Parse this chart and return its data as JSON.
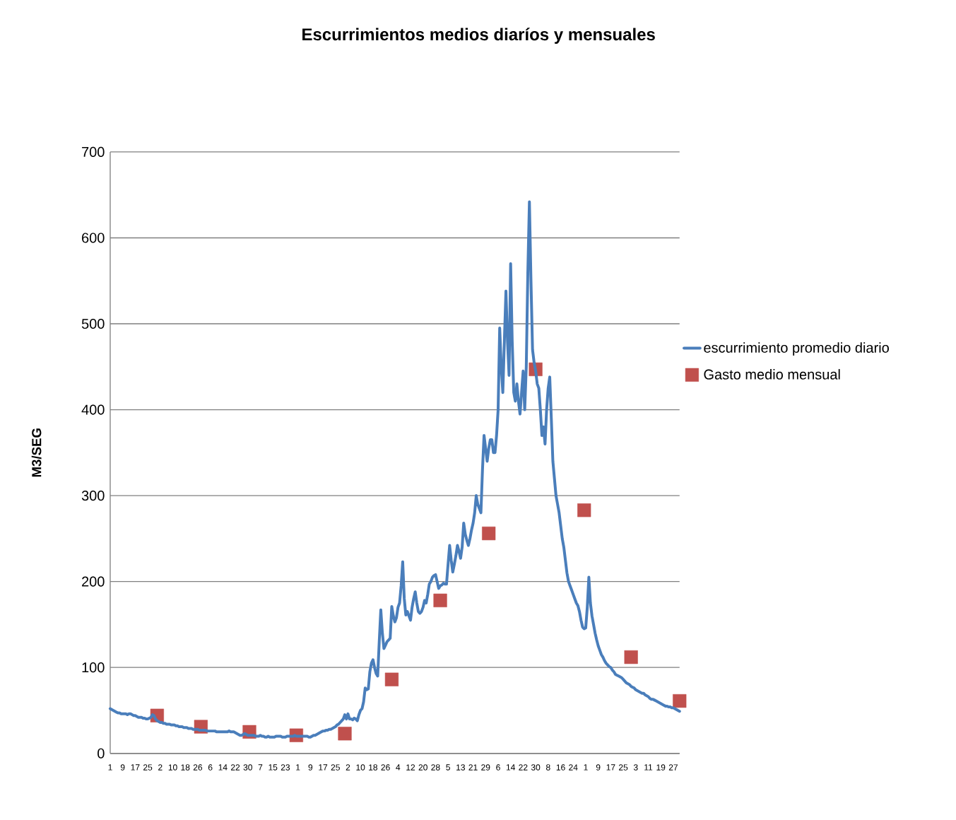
{
  "chart_data": {
    "type": "line",
    "title": "Escurrimientos medios diaríos y mensuales",
    "ylabel": "M3/SEG",
    "categories": [
      "1",
      null,
      null,
      null,
      null,
      null,
      null,
      null,
      "9",
      null,
      null,
      null,
      null,
      null,
      null,
      null,
      "17",
      null,
      null,
      null,
      null,
      null,
      null,
      null,
      "25",
      null,
      null,
      null,
      null,
      null,
      null,
      null,
      "2",
      null,
      null,
      null,
      null,
      null,
      null,
      null,
      "10",
      null,
      null,
      null,
      null,
      null,
      null,
      null,
      "18",
      null,
      null,
      null,
      null,
      null,
      null,
      null,
      "26",
      null,
      null,
      null,
      null,
      null,
      null,
      null,
      "6",
      null,
      null,
      null,
      null,
      null,
      null,
      null,
      "14",
      null,
      null,
      null,
      null,
      null,
      null,
      null,
      "22",
      null,
      null,
      null,
      null,
      null,
      null,
      null,
      "30",
      null,
      null,
      null,
      null,
      null,
      null,
      null,
      "7",
      null,
      null,
      null,
      null,
      null,
      null,
      null,
      "15",
      null,
      null,
      null,
      null,
      null,
      null,
      null,
      "23",
      null,
      null,
      null,
      null,
      null,
      null,
      null,
      "1",
      null,
      null,
      null,
      null,
      null,
      null,
      null,
      "9",
      null,
      null,
      null,
      null,
      null,
      null,
      null,
      "17",
      null,
      null,
      null,
      null,
      null,
      null,
      null,
      "25",
      null,
      null,
      null,
      null,
      null,
      null,
      null,
      "2",
      null,
      null,
      null,
      null,
      null,
      null,
      null,
      "10",
      null,
      null,
      null,
      null,
      null,
      null,
      null,
      "18",
      null,
      null,
      null,
      null,
      null,
      null,
      null,
      "26",
      null,
      null,
      null,
      null,
      null,
      null,
      null,
      "4",
      null,
      null,
      null,
      null,
      null,
      null,
      null,
      "12",
      null,
      null,
      null,
      null,
      null,
      null,
      null,
      "20",
      null,
      null,
      null,
      null,
      null,
      null,
      null,
      "28",
      null,
      null,
      null,
      null,
      null,
      null,
      null,
      "5",
      null,
      null,
      null,
      null,
      null,
      null,
      null,
      "13",
      null,
      null,
      null,
      null,
      null,
      null,
      null,
      "21",
      null,
      null,
      null,
      null,
      null,
      null,
      null,
      "29",
      null,
      null,
      null,
      null,
      null,
      null,
      null,
      "6",
      null,
      null,
      null,
      null,
      null,
      null,
      null,
      "14",
      null,
      null,
      null,
      null,
      null,
      null,
      null,
      "22",
      null,
      null,
      null,
      null,
      null,
      null,
      null,
      "30",
      null,
      null,
      null,
      null,
      null,
      null,
      null,
      "8",
      null,
      null,
      null,
      null,
      null,
      null,
      null,
      "16",
      null,
      null,
      null,
      null,
      null,
      null,
      null,
      "24",
      null,
      null,
      null,
      null,
      null,
      null,
      null,
      "1",
      null,
      null,
      null,
      null,
      null,
      null,
      null,
      "9",
      null,
      null,
      null,
      null,
      null,
      null,
      null,
      "17",
      null,
      null,
      null,
      null,
      null,
      null,
      null,
      "25",
      null,
      null,
      null,
      null,
      null,
      null,
      null,
      "3",
      null,
      null,
      null,
      null,
      null,
      null,
      null,
      "11",
      null,
      null,
      null,
      null,
      null,
      null,
      null,
      "19",
      null,
      null,
      null,
      null,
      null,
      null,
      null,
      "27",
      null,
      null,
      null,
      null
    ],
    "series": [
      {
        "name": "escurrimiento promedio diario",
        "color": "#4a7ebb",
        "marker": "none",
        "values": [
          52,
          51,
          50,
          49,
          48,
          47,
          47,
          46,
          46,
          46,
          46,
          45,
          46,
          46,
          45,
          44,
          44,
          43,
          42,
          42,
          42,
          41,
          41,
          40,
          40,
          41,
          42,
          45,
          44,
          40,
          38,
          37,
          36,
          36,
          35,
          35,
          34,
          34,
          34,
          33,
          33,
          33,
          32,
          32,
          31,
          31,
          31,
          30,
          30,
          30,
          29,
          29,
          29,
          28,
          28,
          28,
          28,
          27,
          27,
          27,
          27,
          27,
          26,
          26,
          26,
          26,
          26,
          26,
          25,
          25,
          25,
          25,
          25,
          25,
          25,
          25,
          26,
          25,
          25,
          25,
          24,
          23,
          22,
          21,
          21,
          22,
          23,
          22,
          21,
          21,
          21,
          21,
          21,
          20,
          20,
          20,
          21,
          20,
          20,
          19,
          19,
          20,
          19,
          19,
          19,
          19,
          20,
          20,
          20,
          20,
          19,
          19,
          19,
          20,
          20,
          20,
          20,
          20,
          21,
          20,
          20,
          20,
          20,
          20,
          20,
          20,
          20,
          19,
          19,
          20,
          21,
          21,
          22,
          23,
          24,
          25,
          26,
          26,
          27,
          27,
          28,
          28,
          29,
          30,
          31,
          33,
          34,
          36,
          38,
          40,
          45,
          40,
          46,
          40,
          40,
          39,
          41,
          40,
          38,
          45,
          50,
          52,
          60,
          76,
          74,
          75,
          95,
          105,
          109,
          100,
          93,
          90,
          130,
          167,
          140,
          122,
          126,
          130,
          132,
          134,
          171,
          160,
          153,
          158,
          170,
          175,
          195,
          223,
          180,
          161,
          165,
          160,
          155,
          170,
          180,
          188,
          175,
          165,
          163,
          165,
          170,
          178,
          175,
          185,
          197,
          200,
          205,
          207,
          208,
          200,
          192,
          195,
          196,
          198,
          197,
          197,
          220,
          242,
          225,
          211,
          220,
          230,
          242,
          235,
          227,
          240,
          268,
          255,
          248,
          242,
          250,
          260,
          268,
          280,
          300,
          290,
          285,
          280,
          330,
          370,
          355,
          340,
          355,
          365,
          365,
          350,
          350,
          370,
          400,
          495,
          450,
          420,
          480,
          538,
          480,
          440,
          570,
          480,
          420,
          410,
          430,
          410,
          395,
          420,
          445,
          400,
          450,
          560,
          642,
          550,
          470,
          455,
          445,
          430,
          425,
          400,
          370,
          380,
          360,
          400,
          425,
          438,
          390,
          340,
          320,
          300,
          290,
          280,
          265,
          250,
          240,
          225,
          210,
          200,
          195,
          190,
          185,
          180,
          175,
          172,
          165,
          155,
          147,
          145,
          146,
          170,
          205,
          175,
          160,
          150,
          140,
          132,
          125,
          120,
          115,
          112,
          108,
          105,
          103,
          101,
          100,
          97,
          95,
          92,
          91,
          90,
          89,
          88,
          86,
          84,
          82,
          81,
          80,
          78,
          77,
          76,
          74,
          73,
          72,
          71,
          70,
          70,
          68,
          67,
          66,
          64,
          63,
          63,
          62,
          61,
          60,
          59,
          58,
          57,
          56,
          55,
          55,
          54,
          54,
          53,
          53,
          52,
          51,
          50,
          49
        ]
      },
      {
        "name": "Gasto medio mensual",
        "type": "scatter",
        "color": "#c0504d",
        "marker": "square",
        "values": [
          null,
          null,
          null,
          null,
          null,
          null,
          null,
          null,
          null,
          null,
          null,
          null,
          null,
          null,
          null,
          null,
          null,
          null,
          null,
          null,
          null,
          null,
          null,
          null,
          null,
          null,
          null,
          null,
          null,
          null,
          44,
          null,
          null,
          null,
          null,
          null,
          null,
          null,
          null,
          null,
          null,
          null,
          null,
          null,
          null,
          null,
          null,
          null,
          null,
          null,
          null,
          null,
          null,
          null,
          null,
          null,
          null,
          null,
          31,
          null,
          null,
          null,
          null,
          null,
          null,
          null,
          null,
          null,
          null,
          null,
          null,
          null,
          null,
          null,
          null,
          null,
          null,
          null,
          null,
          null,
          null,
          null,
          null,
          null,
          null,
          null,
          null,
          null,
          null,
          25,
          null,
          null,
          null,
          null,
          null,
          null,
          null,
          null,
          null,
          null,
          null,
          null,
          null,
          null,
          null,
          null,
          null,
          null,
          null,
          null,
          null,
          null,
          null,
          null,
          null,
          null,
          null,
          null,
          null,
          21,
          null,
          null,
          null,
          null,
          null,
          null,
          null,
          null,
          null,
          null,
          null,
          null,
          null,
          null,
          null,
          null,
          null,
          null,
          null,
          null,
          null,
          null,
          null,
          null,
          null,
          null,
          null,
          null,
          null,
          null,
          23,
          null,
          null,
          null,
          null,
          null,
          null,
          null,
          null,
          null,
          null,
          null,
          null,
          null,
          null,
          null,
          null,
          null,
          null,
          null,
          null,
          null,
          null,
          null,
          null,
          null,
          null,
          null,
          null,
          null,
          86,
          null,
          null,
          null,
          null,
          null,
          null,
          null,
          null,
          null,
          null,
          null,
          null,
          null,
          null,
          null,
          null,
          null,
          null,
          null,
          null,
          null,
          null,
          null,
          null,
          null,
          null,
          null,
          null,
          null,
          null,
          178,
          null,
          null,
          null,
          null,
          null,
          null,
          null,
          null,
          null,
          null,
          null,
          null,
          null,
          null,
          null,
          null,
          null,
          null,
          null,
          null,
          null,
          null,
          null,
          null,
          null,
          null,
          null,
          null,
          null,
          null,
          256,
          null,
          null,
          null,
          null,
          null,
          null,
          null,
          null,
          null,
          null,
          null,
          null,
          null,
          null,
          null,
          null,
          null,
          null,
          null,
          null,
          null,
          null,
          null,
          null,
          null,
          null,
          null,
          null,
          null,
          447,
          null,
          null,
          null,
          null,
          null,
          null,
          null,
          null,
          null,
          null,
          null,
          null,
          null,
          null,
          null,
          null,
          null,
          null,
          null,
          null,
          null,
          null,
          null,
          null,
          null,
          null,
          null,
          null,
          null,
          null,
          283,
          null,
          null,
          null,
          null,
          null,
          null,
          null,
          null,
          null,
          null,
          null,
          null,
          null,
          null,
          null,
          null,
          null,
          null,
          null,
          null,
          null,
          null,
          null,
          null,
          null,
          null,
          null,
          null,
          null,
          112,
          null,
          null,
          null,
          null,
          null,
          null,
          null,
          null,
          null,
          null,
          null,
          null,
          null,
          null,
          null,
          null,
          null,
          null,
          null,
          null,
          null,
          null,
          null,
          null,
          null,
          null,
          null,
          null,
          null,
          null,
          61
        ]
      }
    ],
    "ylim": [
      0,
      700
    ],
    "yticks": [
      0,
      100,
      200,
      300,
      400,
      500,
      600,
      700
    ],
    "grid": "y",
    "legend": "right"
  }
}
